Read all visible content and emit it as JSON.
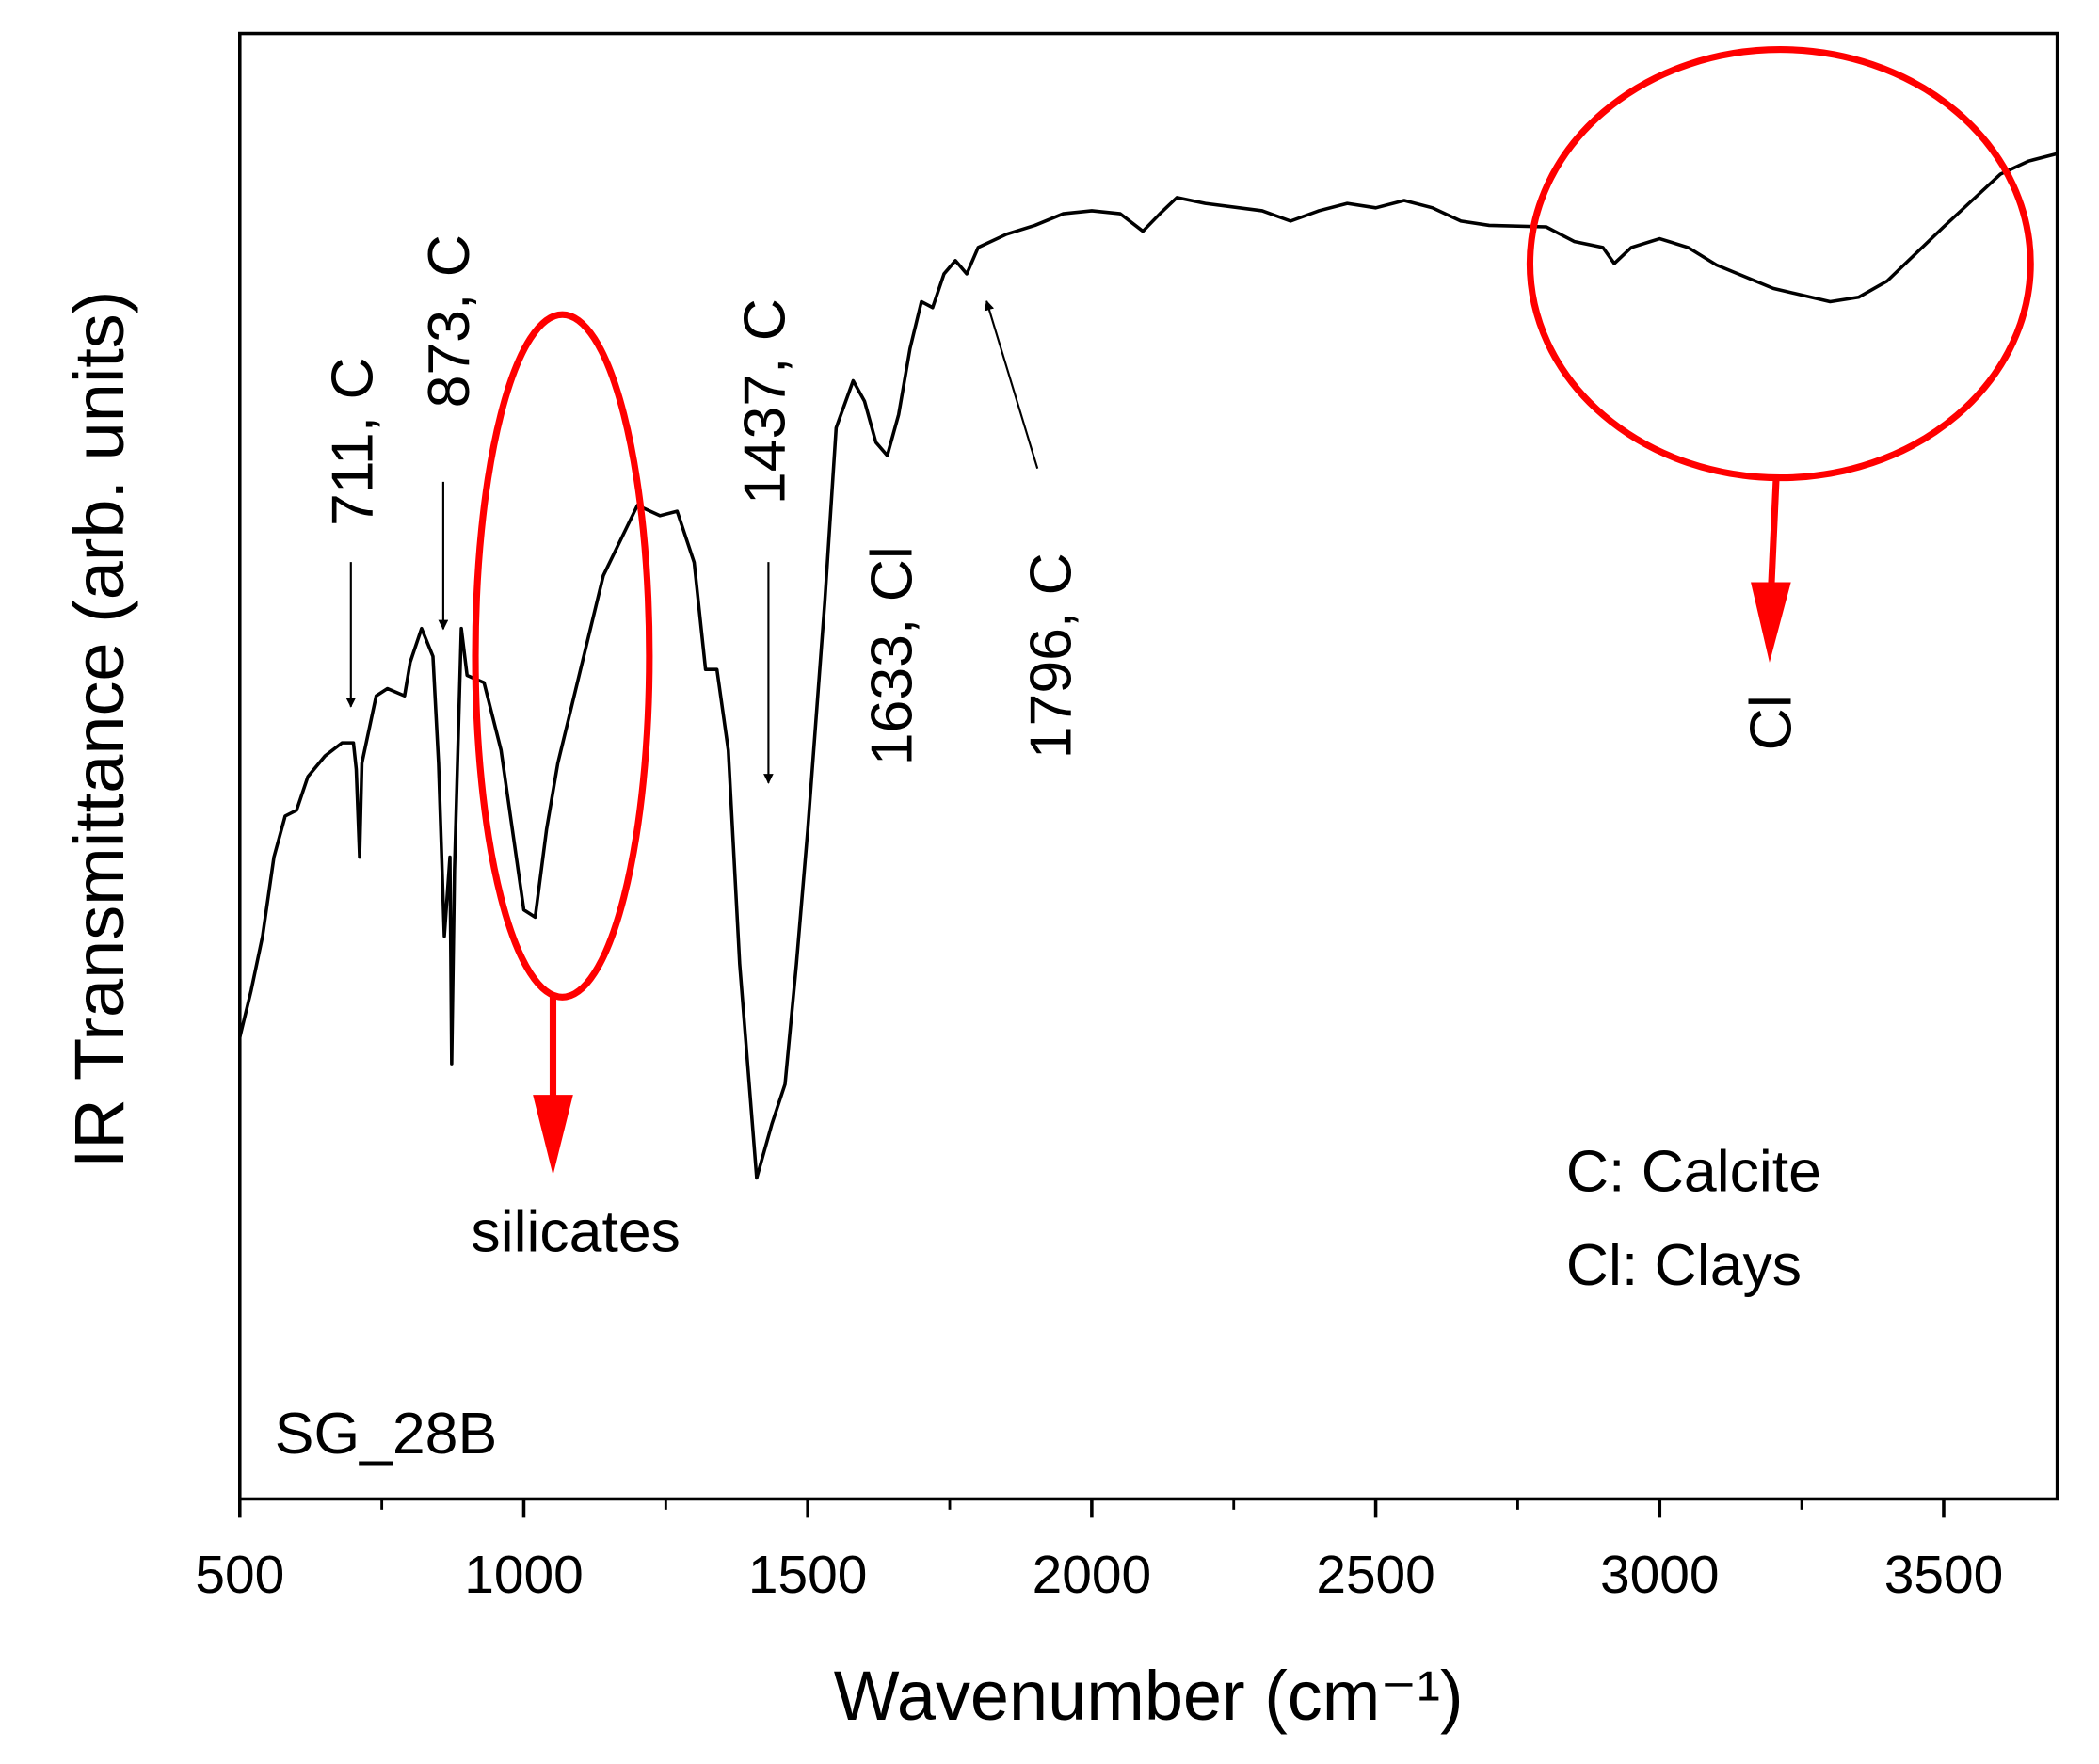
{
  "chart_data": {
    "type": "line",
    "xlabel": "Wavenumber (cm⁻¹)",
    "ylabel": "IR Transmittance (arb. units)",
    "xlim": [
      500,
      3700
    ],
    "ylim": [
      0,
      100
    ],
    "xticks": [
      500,
      1000,
      1500,
      2000,
      2500,
      3000,
      3500
    ],
    "xminor_ticks": [
      750,
      1250,
      1750,
      2250,
      2750,
      3250
    ],
    "series": [
      {
        "name": "SG_28B",
        "color": "#000000",
        "x": [
          500,
          520,
          540,
          560,
          580,
          600,
          620,
          650,
          680,
          700,
          705,
          711,
          715,
          740,
          760,
          790,
          800,
          820,
          840,
          850,
          860,
          870,
          873,
          878,
          890,
          900,
          930,
          960,
          1000,
          1020,
          1040,
          1060,
          1100,
          1140,
          1180,
          1200,
          1240,
          1270,
          1300,
          1320,
          1340,
          1360,
          1380,
          1410,
          1437,
          1460,
          1480,
          1500,
          1530,
          1550,
          1580,
          1600,
          1620,
          1640,
          1660,
          1680,
          1700,
          1720,
          1740,
          1760,
          1780,
          1800,
          1850,
          1900,
          1950,
          2000,
          2050,
          2090,
          2120,
          2150,
          2200,
          2300,
          2350,
          2400,
          2450,
          2500,
          2550,
          2600,
          2650,
          2700,
          2800,
          2850,
          2900,
          2920,
          2950,
          3000,
          3050,
          3100,
          3200,
          3300,
          3350,
          3400,
          3500,
          3550,
          3600,
          3650,
          3700
        ],
        "values": [
          31.5,
          34.7,
          38.4,
          43.8,
          46.6,
          47.0,
          49.3,
          50.7,
          51.6,
          51.6,
          49.8,
          43.8,
          50.2,
          54.8,
          55.3,
          54.8,
          57.1,
          59.4,
          57.5,
          50.2,
          38.4,
          43.8,
          29.7,
          42.9,
          59.4,
          56.2,
          55.7,
          51.1,
          40.2,
          39.7,
          45.7,
          50.2,
          56.6,
          63.0,
          66.2,
          67.8,
          67.1,
          67.4,
          63.9,
          56.6,
          56.6,
          51.1,
          36.5,
          21.9,
          25.6,
          28.3,
          36.5,
          45.7,
          61.2,
          73.1,
          76.3,
          74.9,
          72.1,
          71.2,
          74.0,
          78.5,
          81.7,
          81.3,
          83.6,
          84.5,
          83.6,
          85.4,
          86.3,
          86.9,
          87.7,
          87.9,
          87.7,
          86.5,
          87.7,
          88.8,
          88.4,
          87.9,
          87.2,
          87.9,
          88.4,
          88.1,
          88.6,
          88.1,
          87.2,
          86.9,
          86.8,
          85.8,
          85.4,
          84.3,
          85.4,
          86.0,
          85.4,
          84.2,
          82.6,
          81.7,
          82.0,
          83.1,
          86.8,
          88.6,
          90.4,
          91.3,
          91.8
        ]
      }
    ],
    "annotations": [
      "711, C",
      "873, C",
      "1437, C",
      "1633, Cl",
      "1796, C",
      "silicates",
      "Cl",
      "C: Calcite",
      "Cl: Clays"
    ]
  }
}
